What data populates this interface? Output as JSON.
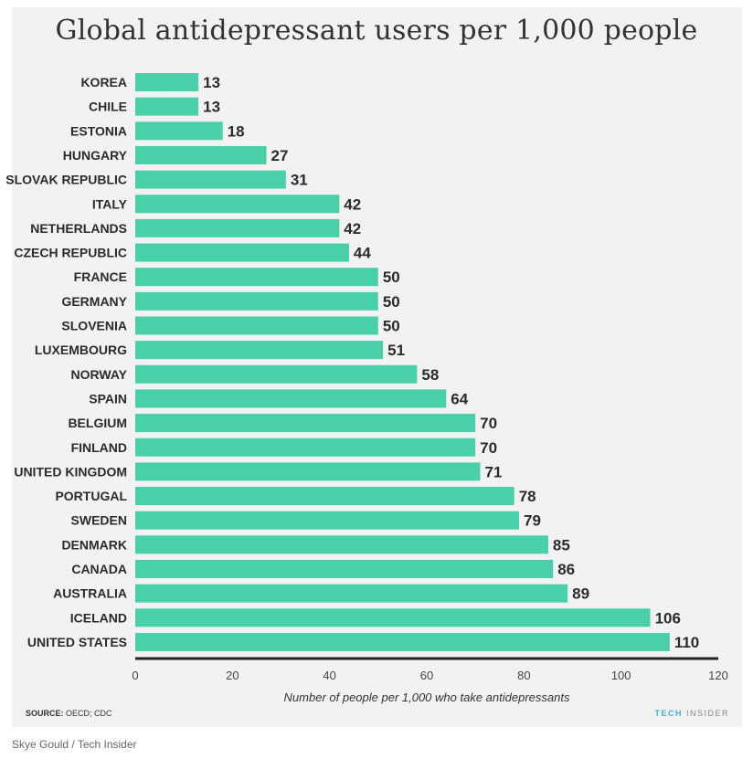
{
  "credit": "Skye Gould / Tech Insider",
  "source": {
    "label": "SOURCE:",
    "text": "OECD; CDC"
  },
  "brand": {
    "tech": "TECH",
    "insider": "INSIDER"
  },
  "colors": {
    "bar": "#4ad0a8",
    "background": "#f2f2f2",
    "axis": "#222222",
    "text": "#2b2b2b"
  },
  "chart_data": {
    "type": "bar",
    "orientation": "horizontal",
    "title": "Global antidepressant users per 1,000 people",
    "xlabel": "Number of people per 1,000 who take antidepressants",
    "ylabel": "",
    "xlim": [
      0,
      120
    ],
    "xticks": [
      0,
      20,
      40,
      60,
      80,
      100,
      120
    ],
    "grid": false,
    "categories": [
      "KOREA",
      "CHILE",
      "ESTONIA",
      "HUNGARY",
      "SLOVAK REPUBLIC",
      "ITALY",
      "NETHERLANDS",
      "CZECH REPUBLIC",
      "FRANCE",
      "GERMANY",
      "SLOVENIA",
      "LUXEMBOURG",
      "NORWAY",
      "SPAIN",
      "BELGIUM",
      "FINLAND",
      "UNITED KINGDOM",
      "PORTUGAL",
      "SWEDEN",
      "DENMARK",
      "CANADA",
      "AUSTRALIA",
      "ICELAND",
      "UNITED STATES"
    ],
    "values": [
      13,
      13,
      18,
      27,
      31,
      42,
      42,
      44,
      50,
      50,
      50,
      51,
      58,
      64,
      70,
      70,
      71,
      78,
      79,
      85,
      86,
      89,
      106,
      110
    ]
  }
}
